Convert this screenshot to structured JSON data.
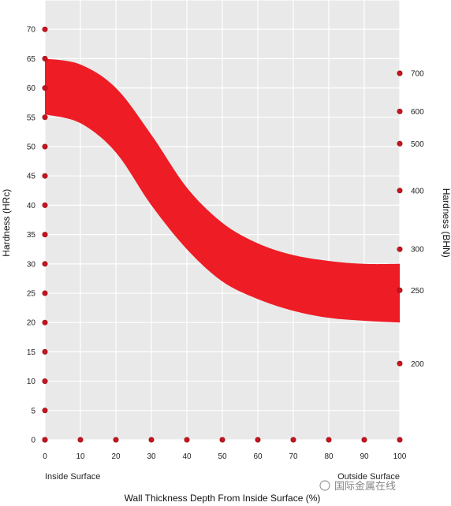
{
  "chart_data": {
    "type": "area",
    "xlabel": "Wall Thickness Depth From Inside Surface (%)",
    "ylabel": "Hardness (HRc)",
    "ylabel_right": "Hardness (BHN)",
    "xlim": [
      0,
      100
    ],
    "ylim": [
      0,
      75
    ],
    "x_ticks": [
      0,
      10,
      20,
      30,
      40,
      50,
      60,
      70,
      80,
      90,
      100
    ],
    "y_ticks": [
      0,
      5,
      10,
      15,
      20,
      25,
      30,
      35,
      40,
      45,
      50,
      55,
      60,
      65,
      70
    ],
    "right_ticks": [
      {
        "label": "700",
        "hrc": 62.5
      },
      {
        "label": "600",
        "hrc": 56
      },
      {
        "label": "500",
        "hrc": 50.5
      },
      {
        "label": "400",
        "hrc": 42.5
      },
      {
        "label": "300",
        "hrc": 32.5
      },
      {
        "label": "250",
        "hrc": 25.5
      },
      {
        "label": "200",
        "hrc": 13
      }
    ],
    "annotations": {
      "inside": "Inside Surface",
      "outside": "Outside Surface"
    },
    "grid": true,
    "colors": {
      "band": "#ee1c25",
      "background": "#e9e9e9",
      "grid": "#ffffff",
      "marker": "#c8141e"
    },
    "series": [
      {
        "x": [
          0,
          10,
          20,
          30,
          40,
          50,
          60,
          70,
          80,
          90,
          100
        ],
        "upper": [
          65,
          64,
          60,
          52,
          43,
          37,
          33.5,
          31.5,
          30.5,
          30,
          30
        ],
        "lower": [
          55.5,
          54,
          49,
          40,
          32.5,
          27,
          24,
          22,
          20.8,
          20.3,
          20
        ]
      }
    ]
  },
  "watermark": "国际金属在线"
}
